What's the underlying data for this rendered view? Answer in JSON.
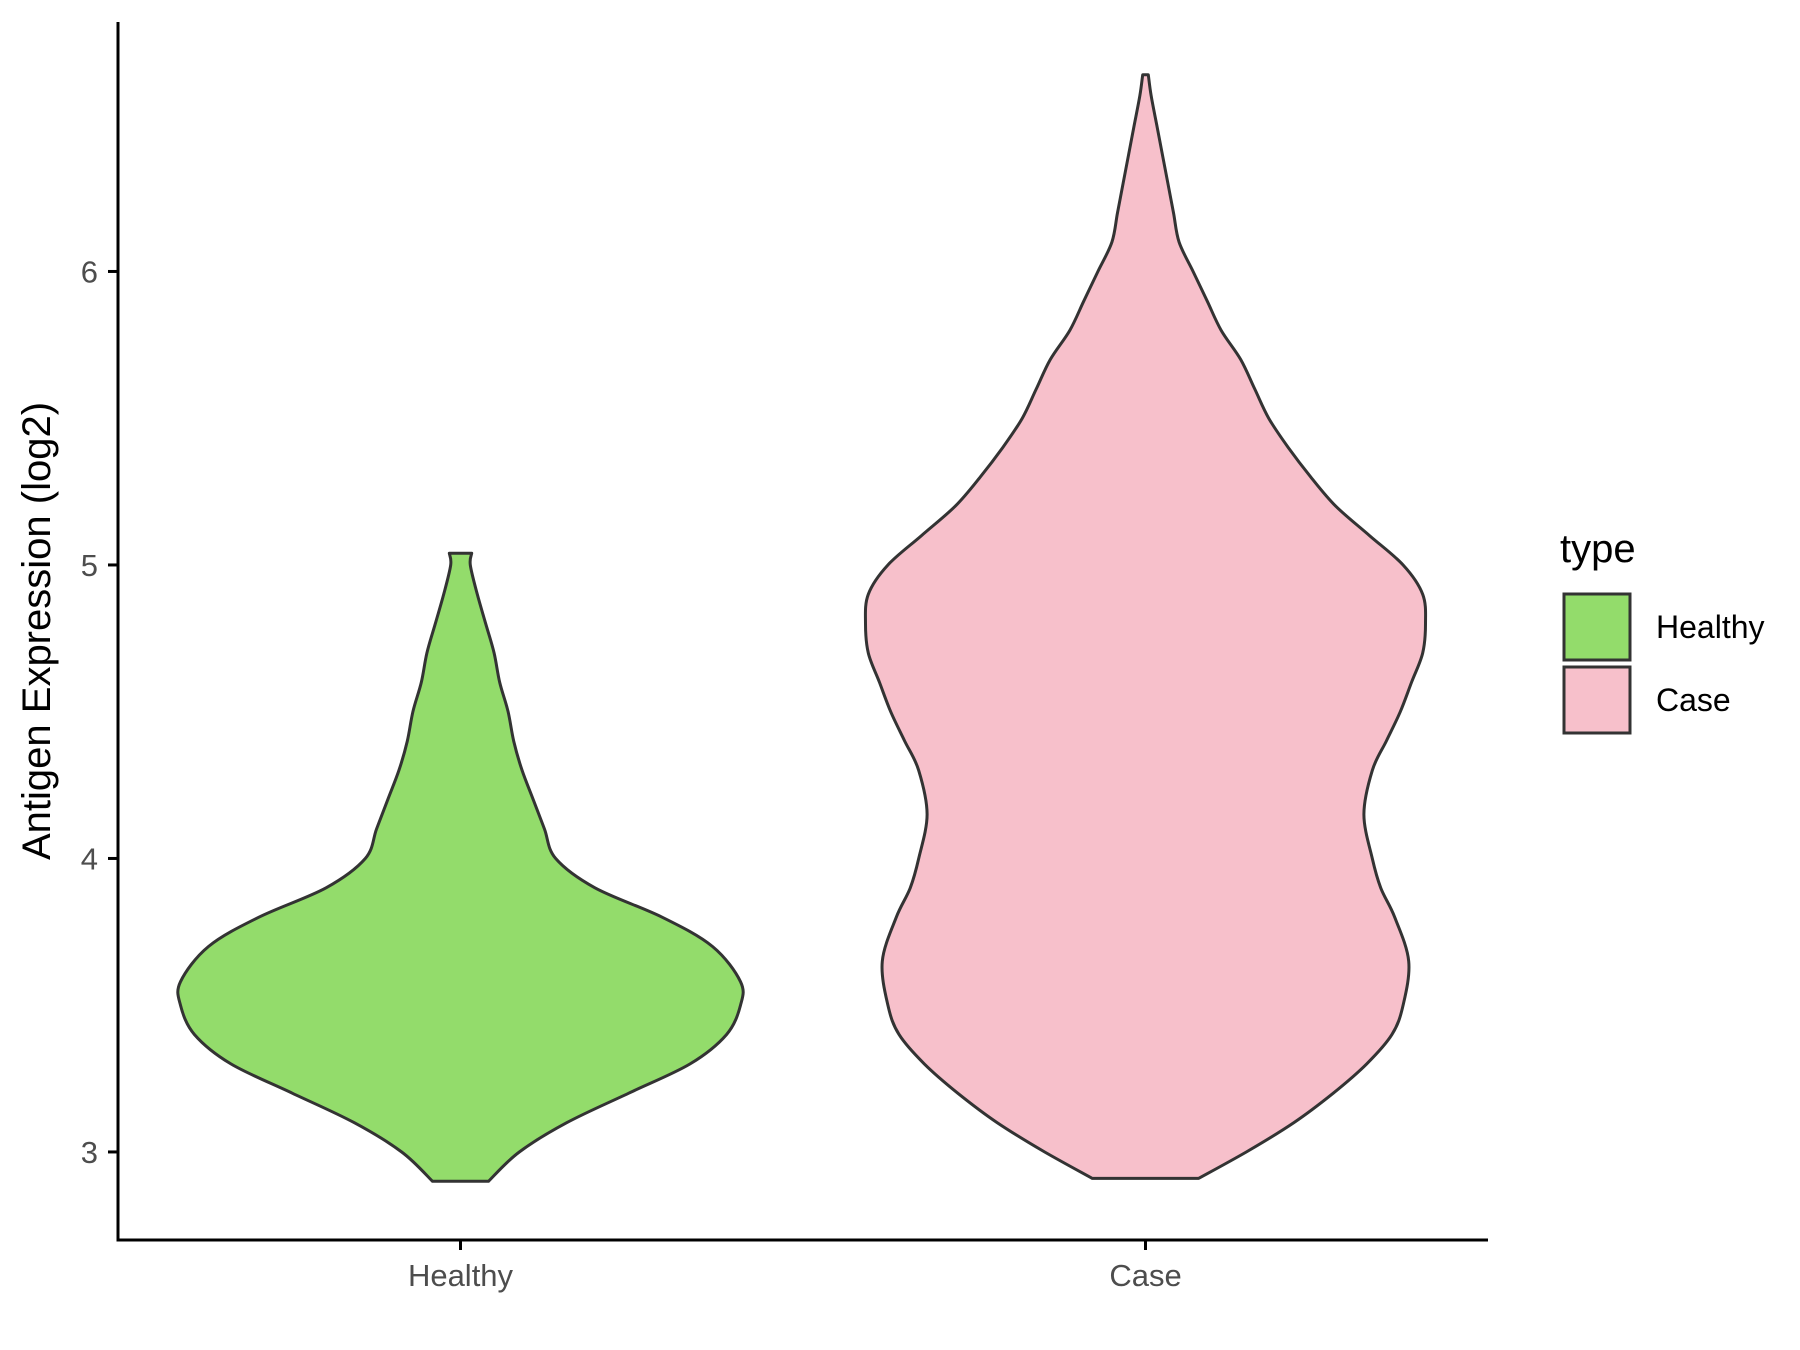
{
  "chart_data": {
    "type": "violin",
    "title": "",
    "xlabel": "",
    "ylabel": "Antigen Expression (log2)",
    "categories": [
      "Healthy",
      "Case"
    ],
    "ylim": [
      2.7,
      6.85
    ],
    "yticks": [
      3,
      4,
      5,
      6
    ],
    "grid": false,
    "legend": {
      "title": "type",
      "position": "right",
      "entries": [
        {
          "label": "Healthy",
          "color": "#93dc6b"
        },
        {
          "label": "Case",
          "color": "#f7c0cb"
        }
      ]
    },
    "series": [
      {
        "name": "Healthy",
        "color": "#93dc6b",
        "y": [
          2.9,
          3.0,
          3.1,
          3.2,
          3.3,
          3.4,
          3.5,
          3.58,
          3.7,
          3.8,
          3.9,
          4.0,
          4.1,
          4.2,
          4.3,
          4.4,
          4.5,
          4.6,
          4.7,
          4.8,
          4.9,
          5.0,
          5.04
        ],
        "width": [
          0.1,
          0.21,
          0.38,
          0.6,
          0.82,
          0.95,
          1.0,
          1.0,
          0.9,
          0.72,
          0.48,
          0.34,
          0.3,
          0.26,
          0.22,
          0.19,
          0.17,
          0.14,
          0.12,
          0.09,
          0.06,
          0.035,
          0.04
        ]
      },
      {
        "name": "Case",
        "color": "#f7c0cb",
        "y": [
          2.91,
          3.0,
          3.1,
          3.2,
          3.3,
          3.4,
          3.5,
          3.65,
          3.8,
          3.9,
          4.0,
          4.15,
          4.3,
          4.4,
          4.5,
          4.6,
          4.7,
          4.8,
          4.9,
          5.0,
          5.1,
          5.2,
          5.3,
          5.4,
          5.5,
          5.6,
          5.7,
          5.8,
          5.9,
          6.0,
          6.1,
          6.2,
          6.3,
          6.4,
          6.5,
          6.6,
          6.67
        ],
        "width": [
          0.19,
          0.36,
          0.53,
          0.67,
          0.79,
          0.88,
          0.92,
          0.94,
          0.89,
          0.84,
          0.81,
          0.78,
          0.81,
          0.86,
          0.91,
          0.95,
          0.99,
          1.0,
          0.99,
          0.92,
          0.8,
          0.68,
          0.59,
          0.51,
          0.44,
          0.39,
          0.34,
          0.27,
          0.22,
          0.17,
          0.12,
          0.1,
          0.08,
          0.06,
          0.04,
          0.02,
          0.01
        ]
      }
    ]
  }
}
